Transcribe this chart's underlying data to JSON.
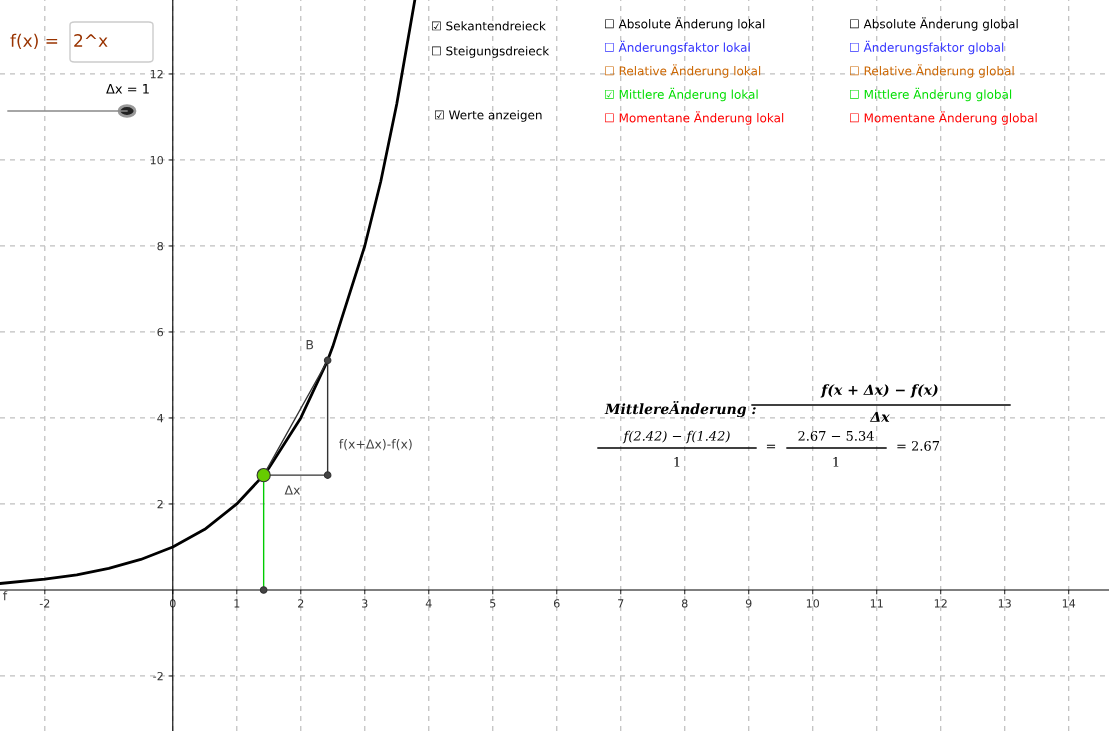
{
  "chart_data": {
    "type": "line",
    "xlim": [
      -2.7,
      14.63
    ],
    "ylim": [
      -3.28,
      13.72
    ],
    "xticks": [
      -2,
      0,
      1,
      2,
      3,
      4,
      5,
      6,
      7,
      8,
      9,
      10,
      11,
      12,
      13,
      14
    ],
    "yticks": [
      -2,
      2,
      4,
      6,
      8,
      10,
      12
    ],
    "grid": true,
    "line_style": "solid",
    "series": [
      {
        "color": "#000000",
        "x": [
          -2.7,
          -2,
          -1.5,
          -1,
          -0.5,
          0,
          0.5,
          1,
          1.42,
          1.5,
          2,
          2.42,
          2.5,
          3,
          3.25,
          3.5,
          3.78
        ],
        "values": [
          0.15,
          0.25,
          0.35,
          0.5,
          0.71,
          1,
          1.41,
          2,
          2.67,
          2.83,
          4,
          5.34,
          5.66,
          8,
          9.5,
          11.3,
          13.7
        ]
      },
      {
        "color": "#333333",
        "x": [
          1.42,
          2.42
        ],
        "values": [
          2.67,
          5.34
        ]
      },
      {
        "color": "#333333",
        "x": [
          1.42,
          2.42,
          2.42
        ],
        "values": [
          2.67,
          2.67,
          5.34
        ]
      },
      {
        "color": "#00cc00",
        "x": [
          1.42,
          1.42
        ],
        "values": [
          0,
          2.67
        ]
      },
      {
        "type": "scatter",
        "marker": "circle",
        "color": "#66cc00",
        "x": [
          1.42
        ],
        "values": [
          2.67
        ]
      },
      {
        "type": "scatter",
        "marker": "circle",
        "color": "#444444",
        "x": [
          2.42,
          2.42,
          1.42
        ],
        "values": [
          5.34,
          2.67,
          0
        ]
      }
    ],
    "annotations": [
      "f(x) =",
      "2^x",
      "Δx = 1",
      "☑ Sekantendreieck",
      "☐ Steigungsdreieck",
      "☑ Werte anzeigen",
      "☐ Absolute Änderung lokal",
      "☐ Änderungsfaktor lokal",
      "☐ Relative Änderung lokal",
      "☑ Mittlere Änderung lokal",
      "☐ Momentane Änderung lokal",
      "☐ Absolute Änderung global",
      "☐ Änderungsfaktor global",
      "☐ Relative Änderung global",
      "☐ Mittlere Änderung global",
      "☐ Momentane Änderung global",
      "MittlereÄnderung :",
      "f(x + Δx) − f(x)",
      "Δx",
      "f(2.42) − f(1.42)",
      "1",
      "=",
      "2.67 − 5.34",
      "1",
      "= 2.67",
      {
        "text": "B",
        "x": 2.42,
        "y": 5.34
      },
      {
        "text": "f(x+Δx)-f(x)",
        "x": 2.42,
        "y": 4.0
      },
      {
        "text": "Δx",
        "x": 1.92,
        "y": 2.67
      },
      {
        "text": "f",
        "x": -2.7,
        "y": 0.15
      }
    ]
  }
}
